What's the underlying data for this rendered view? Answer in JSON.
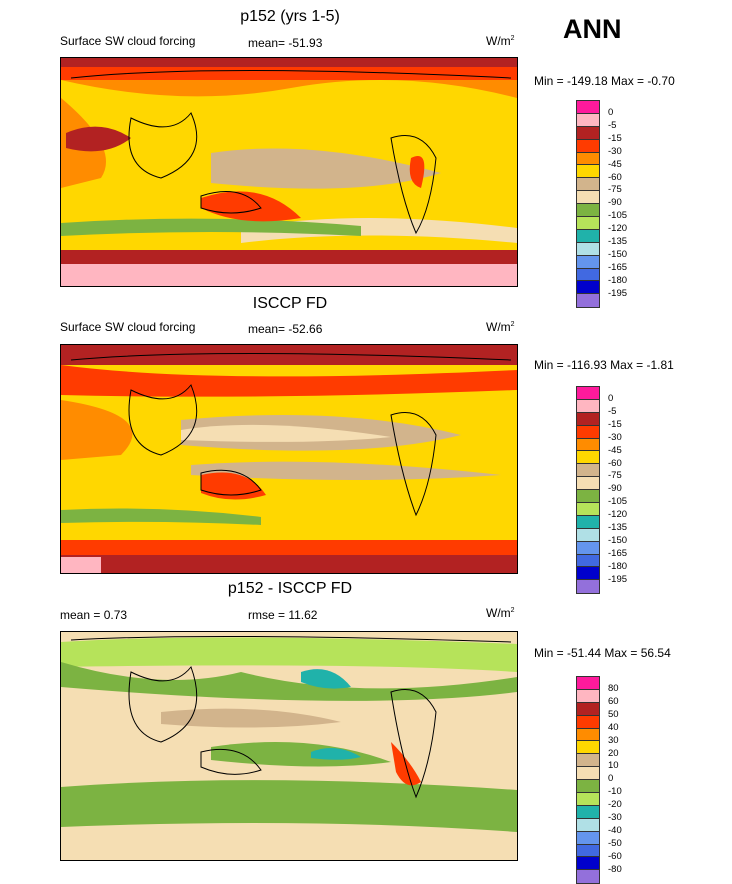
{
  "season": "ANN",
  "panels": [
    {
      "title": "p152 (yrs 1-5)",
      "left_label": "Surface SW cloud forcing",
      "mid_label": "mean= -51.93",
      "units": "W/m",
      "units_sup": "2",
      "minmax": "Min = -149.18 Max =  -0.70",
      "legend_labels": [
        "0",
        "-5",
        "-15",
        "-30",
        "-45",
        "-60",
        "-75",
        "-90",
        "-105",
        "-120",
        "-135",
        "-150",
        "-165",
        "-180",
        "-195"
      ],
      "legend_colors": [
        "#ff1a9c",
        "#ffb6c1",
        "#b22222",
        "#ff3b00",
        "#ff8c00",
        "#ffd700",
        "#d2b48c",
        "#f5deb3",
        "#7cb342",
        "#b6e35a",
        "#20b2aa",
        "#b0e0e6",
        "#6495ed",
        "#4169e1",
        "#0000cd",
        "#9370db"
      ]
    },
    {
      "title": "ISCCP FD",
      "left_label": "Surface SW cloud forcing",
      "mid_label": "mean= -52.66",
      "units": "W/m",
      "units_sup": "2",
      "minmax": "Min = -116.93 Max =  -1.81",
      "legend_labels": [
        "0",
        "-5",
        "-15",
        "-30",
        "-45",
        "-60",
        "-75",
        "-90",
        "-105",
        "-120",
        "-135",
        "-150",
        "-165",
        "-180",
        "-195"
      ],
      "legend_colors": [
        "#ff1a9c",
        "#ffb6c1",
        "#b22222",
        "#ff3b00",
        "#ff8c00",
        "#ffd700",
        "#d2b48c",
        "#f5deb3",
        "#7cb342",
        "#b6e35a",
        "#20b2aa",
        "#b0e0e6",
        "#6495ed",
        "#4169e1",
        "#0000cd",
        "#9370db"
      ]
    },
    {
      "title": "p152 - ISCCP FD",
      "left_label": "mean =   0.73",
      "mid_label": "rmse =  11.62",
      "units": "W/m",
      "units_sup": "2",
      "minmax": "Min = -51.44 Max =  56.54",
      "legend_labels": [
        "80",
        "60",
        "50",
        "40",
        "30",
        "20",
        "10",
        "0",
        "-10",
        "-20",
        "-30",
        "-40",
        "-50",
        "-60",
        "-80"
      ],
      "legend_colors": [
        "#ff1a9c",
        "#ffb6c1",
        "#b22222",
        "#ff3b00",
        "#ff8c00",
        "#ffd700",
        "#d2b48c",
        "#f5deb3",
        "#7cb342",
        "#b6e35a",
        "#20b2aa",
        "#b0e0e6",
        "#6495ed",
        "#4169e1",
        "#0000cd",
        "#9370db"
      ]
    }
  ],
  "chart_data": [
    {
      "type": "heatmap",
      "title": "p152 (yrs 1-5)",
      "subtitle": "Surface SW cloud forcing",
      "units": "W/m2",
      "mean": -51.93,
      "min": -149.18,
      "max": -0.7,
      "contour_levels": [
        0,
        -5,
        -15,
        -30,
        -45,
        -60,
        -75,
        -90,
        -105,
        -120,
        -135,
        -150,
        -165,
        -180,
        -195
      ]
    },
    {
      "type": "heatmap",
      "title": "ISCCP FD",
      "subtitle": "Surface SW cloud forcing",
      "units": "W/m2",
      "mean": -52.66,
      "min": -116.93,
      "max": -1.81,
      "contour_levels": [
        0,
        -5,
        -15,
        -30,
        -45,
        -60,
        -75,
        -90,
        -105,
        -120,
        -135,
        -150,
        -165,
        -180,
        -195
      ]
    },
    {
      "type": "heatmap",
      "title": "p152 - ISCCP FD",
      "units": "W/m2",
      "mean": 0.73,
      "rmse": 11.62,
      "min": -51.44,
      "max": 56.54,
      "contour_levels": [
        80,
        60,
        50,
        40,
        30,
        20,
        10,
        0,
        -10,
        -20,
        -30,
        -40,
        -50,
        -60,
        -80
      ]
    }
  ]
}
